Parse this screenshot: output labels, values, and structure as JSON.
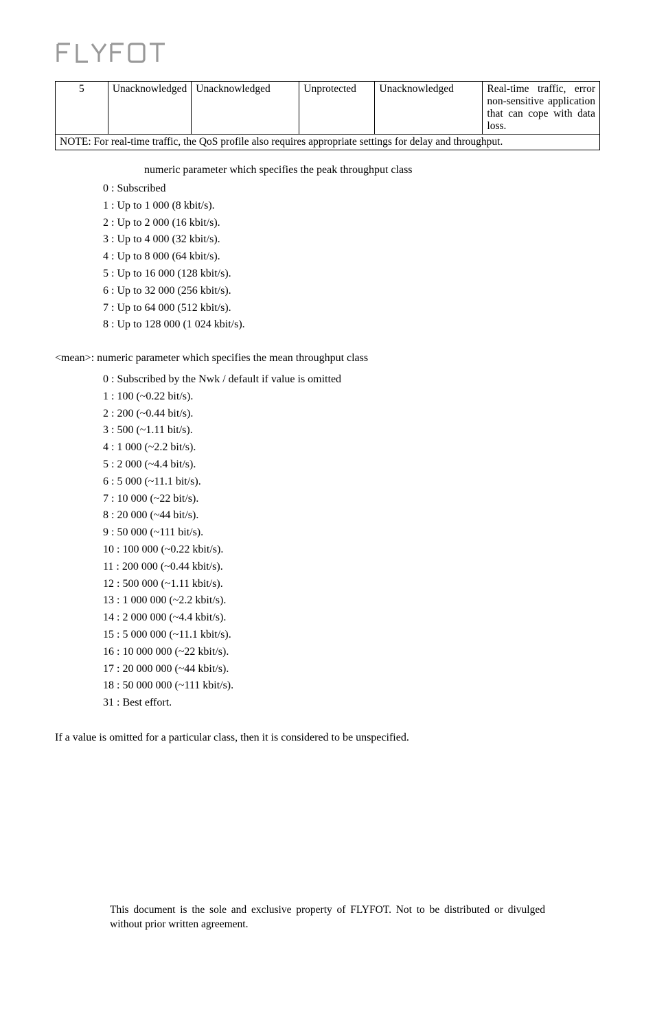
{
  "logo": {
    "text": "FLYFOT"
  },
  "table": {
    "columns_widths": [
      "10%",
      "14%",
      "20%",
      "14%",
      "20%",
      "22%"
    ],
    "row": {
      "col1": "5",
      "col2": "Unacknowledged",
      "col3": "Unacknowledged",
      "col4": "Unprotected",
      "col5": "Unacknowledged",
      "col6": "Real-time traffic, error non-sensitive application that can cope with data loss."
    },
    "note": "NOTE: For real-time traffic, the QoS profile also requires appropriate settings for delay and throughput."
  },
  "peak_heading": "numeric parameter which specifies the peak throughput class",
  "peak_items": [
    "0 : Subscribed",
    "1 : Up to 1 000 (8 kbit/s).",
    "2 : Up to 2 000 (16 kbit/s).",
    "3 : Up to 4 000 (32 kbit/s).",
    "4 : Up to 8 000 (64 kbit/s).",
    "5 : Up to 16 000 (128 kbit/s).",
    "6 : Up to 32 000 (256 kbit/s).",
    "7 : Up to 64 000 (512 kbit/s).",
    "8 : Up to 128 000 (1 024 kbit/s)."
  ],
  "mean_heading": "<mean>: numeric parameter which specifies the mean throughput class",
  "mean_items": [
    "0 : Subscribed by the Nwk / default if value is omitted",
    "1 : 100 (~0.22 bit/s).",
    "2 : 200 (~0.44 bit/s).",
    "3 : 500 (~1.11 bit/s).",
    "4 : 1 000 (~2.2 bit/s).",
    "5 : 2 000 (~4.4 bit/s).",
    "6 : 5 000 (~11.1 bit/s).",
    "7 : 10 000 (~22 bit/s).",
    "8 : 20 000 (~44 bit/s).",
    "9 : 50 000 (~111 bit/s).",
    "10 : 100 000 (~0.22 kbit/s).",
    "11 : 200 000 (~0.44 kbit/s).",
    "12 : 500 000 (~1.11 kbit/s).",
    "13 : 1 000 000 (~2.2 kbit/s).",
    "14 : 2 000 000 (~4.4 kbit/s).",
    "15 : 5 000 000 (~11.1 kbit/s).",
    "16 : 10 000 000 (~22 kbit/s).",
    "17 : 20 000 000 (~44 kbit/s).",
    "18 : 50 000 000 (~111 kbit/s).",
    "31 : Best effort."
  ],
  "closing_para": "If a value is omitted for a particular class, then it is considered to be unspecified.",
  "footer": "This document is the sole and exclusive property of FLYFOT. Not to be distributed or divulged without prior written agreement."
}
